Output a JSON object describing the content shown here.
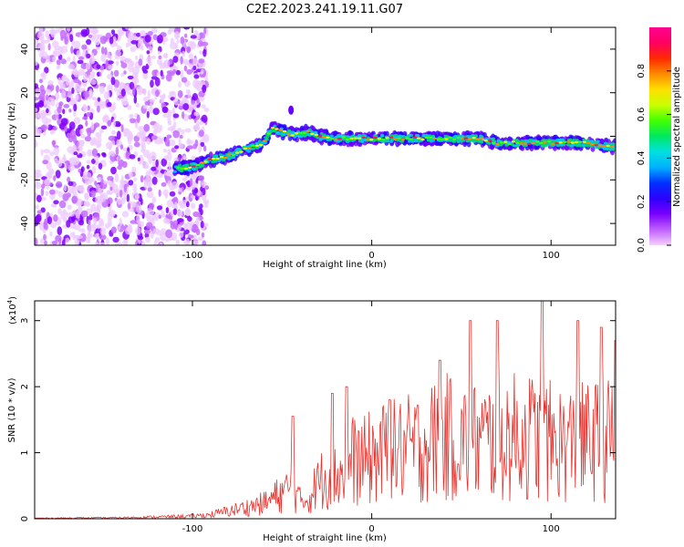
{
  "title": "C2E2.2023.241.19.11.G07",
  "chart_data": [
    {
      "type": "heatmap",
      "xlabel": "Height of straight line (km)",
      "ylabel": "Frequency (Hz)",
      "xlim": [
        -188,
        136
      ],
      "ylim": [
        -50,
        50
      ],
      "xticks": [
        -100,
        0,
        100
      ],
      "yticks": [
        -40,
        -20,
        0,
        20,
        40
      ],
      "colorbar": {
        "label": "Normalized spectral amplitude",
        "range": [
          0,
          1
        ],
        "ticks": [
          "0.0",
          "0.2",
          "0.4",
          "0.6",
          "0.8"
        ],
        "colormap": [
          "#f5d0ff",
          "#c060ff",
          "#7a00ff",
          "#2d00ff",
          "#0030ff",
          "#00b0ff",
          "#00e0e0",
          "#00e860",
          "#40ff00",
          "#c8ff00",
          "#ffe000",
          "#ff8a00",
          "#ff2a00",
          "#ff0060",
          "#ff0090"
        ]
      },
      "ridge": {
        "x": [
          -110,
          -100,
          -90,
          -80,
          -70,
          -60,
          -56,
          -50,
          -45,
          -40,
          -35,
          -30,
          -20,
          -10,
          0,
          20,
          40,
          60,
          70,
          80,
          90,
          100,
          110,
          120,
          136
        ],
        "y": [
          -15,
          -14,
          -11,
          -9,
          -6,
          -3,
          4,
          2,
          1,
          1,
          2,
          0,
          -1,
          -1,
          -1,
          -1,
          -1,
          -1,
          -3,
          -3,
          -3,
          -3,
          -3,
          -3,
          -5
        ]
      }
    },
    {
      "type": "line",
      "xlabel": "Height of straight line (km)",
      "ylabel": "SNR (10 * v/v)",
      "yscale_label": "(x10",
      "yscale_exp": "4",
      "xlim": [
        -188,
        136
      ],
      "ylim": [
        0,
        3.3
      ],
      "xticks": [
        -100,
        0,
        100
      ],
      "yticks": [
        0,
        1,
        2,
        3
      ],
      "color": "#e8332e",
      "envelope": {
        "x": [
          -188,
          -140,
          -100,
          -90,
          -80,
          -70,
          -60,
          -50,
          -45,
          -40,
          -35,
          -30,
          -25,
          -20,
          -15,
          -10,
          -5,
          0,
          10,
          20,
          30,
          40,
          50,
          60,
          70,
          80,
          90,
          100,
          110,
          120,
          136
        ],
        "y": [
          0.01,
          0.02,
          0.05,
          0.08,
          0.15,
          0.22,
          0.3,
          0.5,
          0.6,
          0.35,
          0.4,
          0.7,
          0.85,
          0.8,
          1.0,
          1.15,
          1.1,
          1.2,
          1.3,
          1.35,
          1.45,
          1.6,
          1.5,
          1.5,
          1.55,
          1.6,
          1.6,
          1.5,
          1.45,
          1.5,
          1.55
        ]
      },
      "peaks": [
        {
          "x": -44,
          "y": 1.55
        },
        {
          "x": -22,
          "y": 1.9
        },
        {
          "x": -14,
          "y": 2.0
        },
        {
          "x": 10,
          "y": 1.8
        },
        {
          "x": 38,
          "y": 2.4
        },
        {
          "x": 55,
          "y": 3.0
        },
        {
          "x": 70,
          "y": 3.0
        },
        {
          "x": 95,
          "y": 3.3
        },
        {
          "x": 115,
          "y": 3.0
        },
        {
          "x": 128,
          "y": 2.9
        },
        {
          "x": 136,
          "y": 2.7
        }
      ]
    }
  ]
}
